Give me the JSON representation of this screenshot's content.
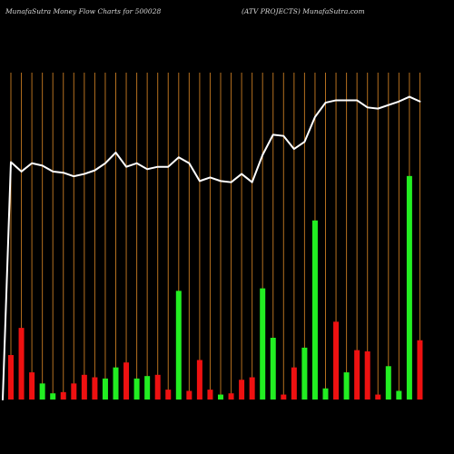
{
  "header": {
    "left_title": "MunafaSutra  Money Flow  Charts for 500028",
    "right_title": "(ATV PROJECTS) MunafaSutra.com"
  },
  "colors": {
    "background": "#000000",
    "grid": "#b5701f",
    "up_bar": "#22ee22",
    "down_bar": "#ee1111",
    "price_line": "#ffffff"
  },
  "chart_data": {
    "type": "bar",
    "description_of_axes": "no numeric axes printed; bar heights are relative money-flow volume, line is relative price",
    "grid": true,
    "series": [
      {
        "kind": "bar",
        "values": [
          36,
          58,
          22,
          13,
          5,
          6,
          13,
          20,
          18,
          17,
          26,
          30,
          17,
          19,
          20,
          8,
          88,
          7,
          32,
          8,
          4,
          5,
          16,
          18,
          90,
          50,
          4,
          26,
          42,
          145,
          9,
          63,
          22,
          40,
          39,
          4,
          27,
          7,
          181,
          48
        ],
        "colors": [
          "red",
          "red",
          "red",
          "green",
          "green",
          "red",
          "red",
          "red",
          "red",
          "green",
          "green",
          "red",
          "green",
          "green",
          "red",
          "red",
          "green",
          "red",
          "red",
          "red",
          "green",
          "red",
          "red",
          "red",
          "green",
          "green",
          "red",
          "red",
          "green",
          "green",
          "green",
          "red",
          "green",
          "red",
          "red",
          "red",
          "green",
          "green",
          "green",
          "red"
        ]
      },
      {
        "kind": "line",
        "values": [
          200,
          192,
          199,
          197,
          192,
          191,
          188,
          190,
          193,
          199,
          208,
          196,
          199,
          194,
          196,
          196,
          204,
          199,
          184,
          187,
          184,
          183,
          190,
          183,
          206,
          223,
          222,
          211,
          217,
          238,
          250,
          252,
          252,
          252,
          246,
          245,
          248,
          251,
          255,
          251
        ]
      }
    ],
    "price_start_value": 0
  }
}
